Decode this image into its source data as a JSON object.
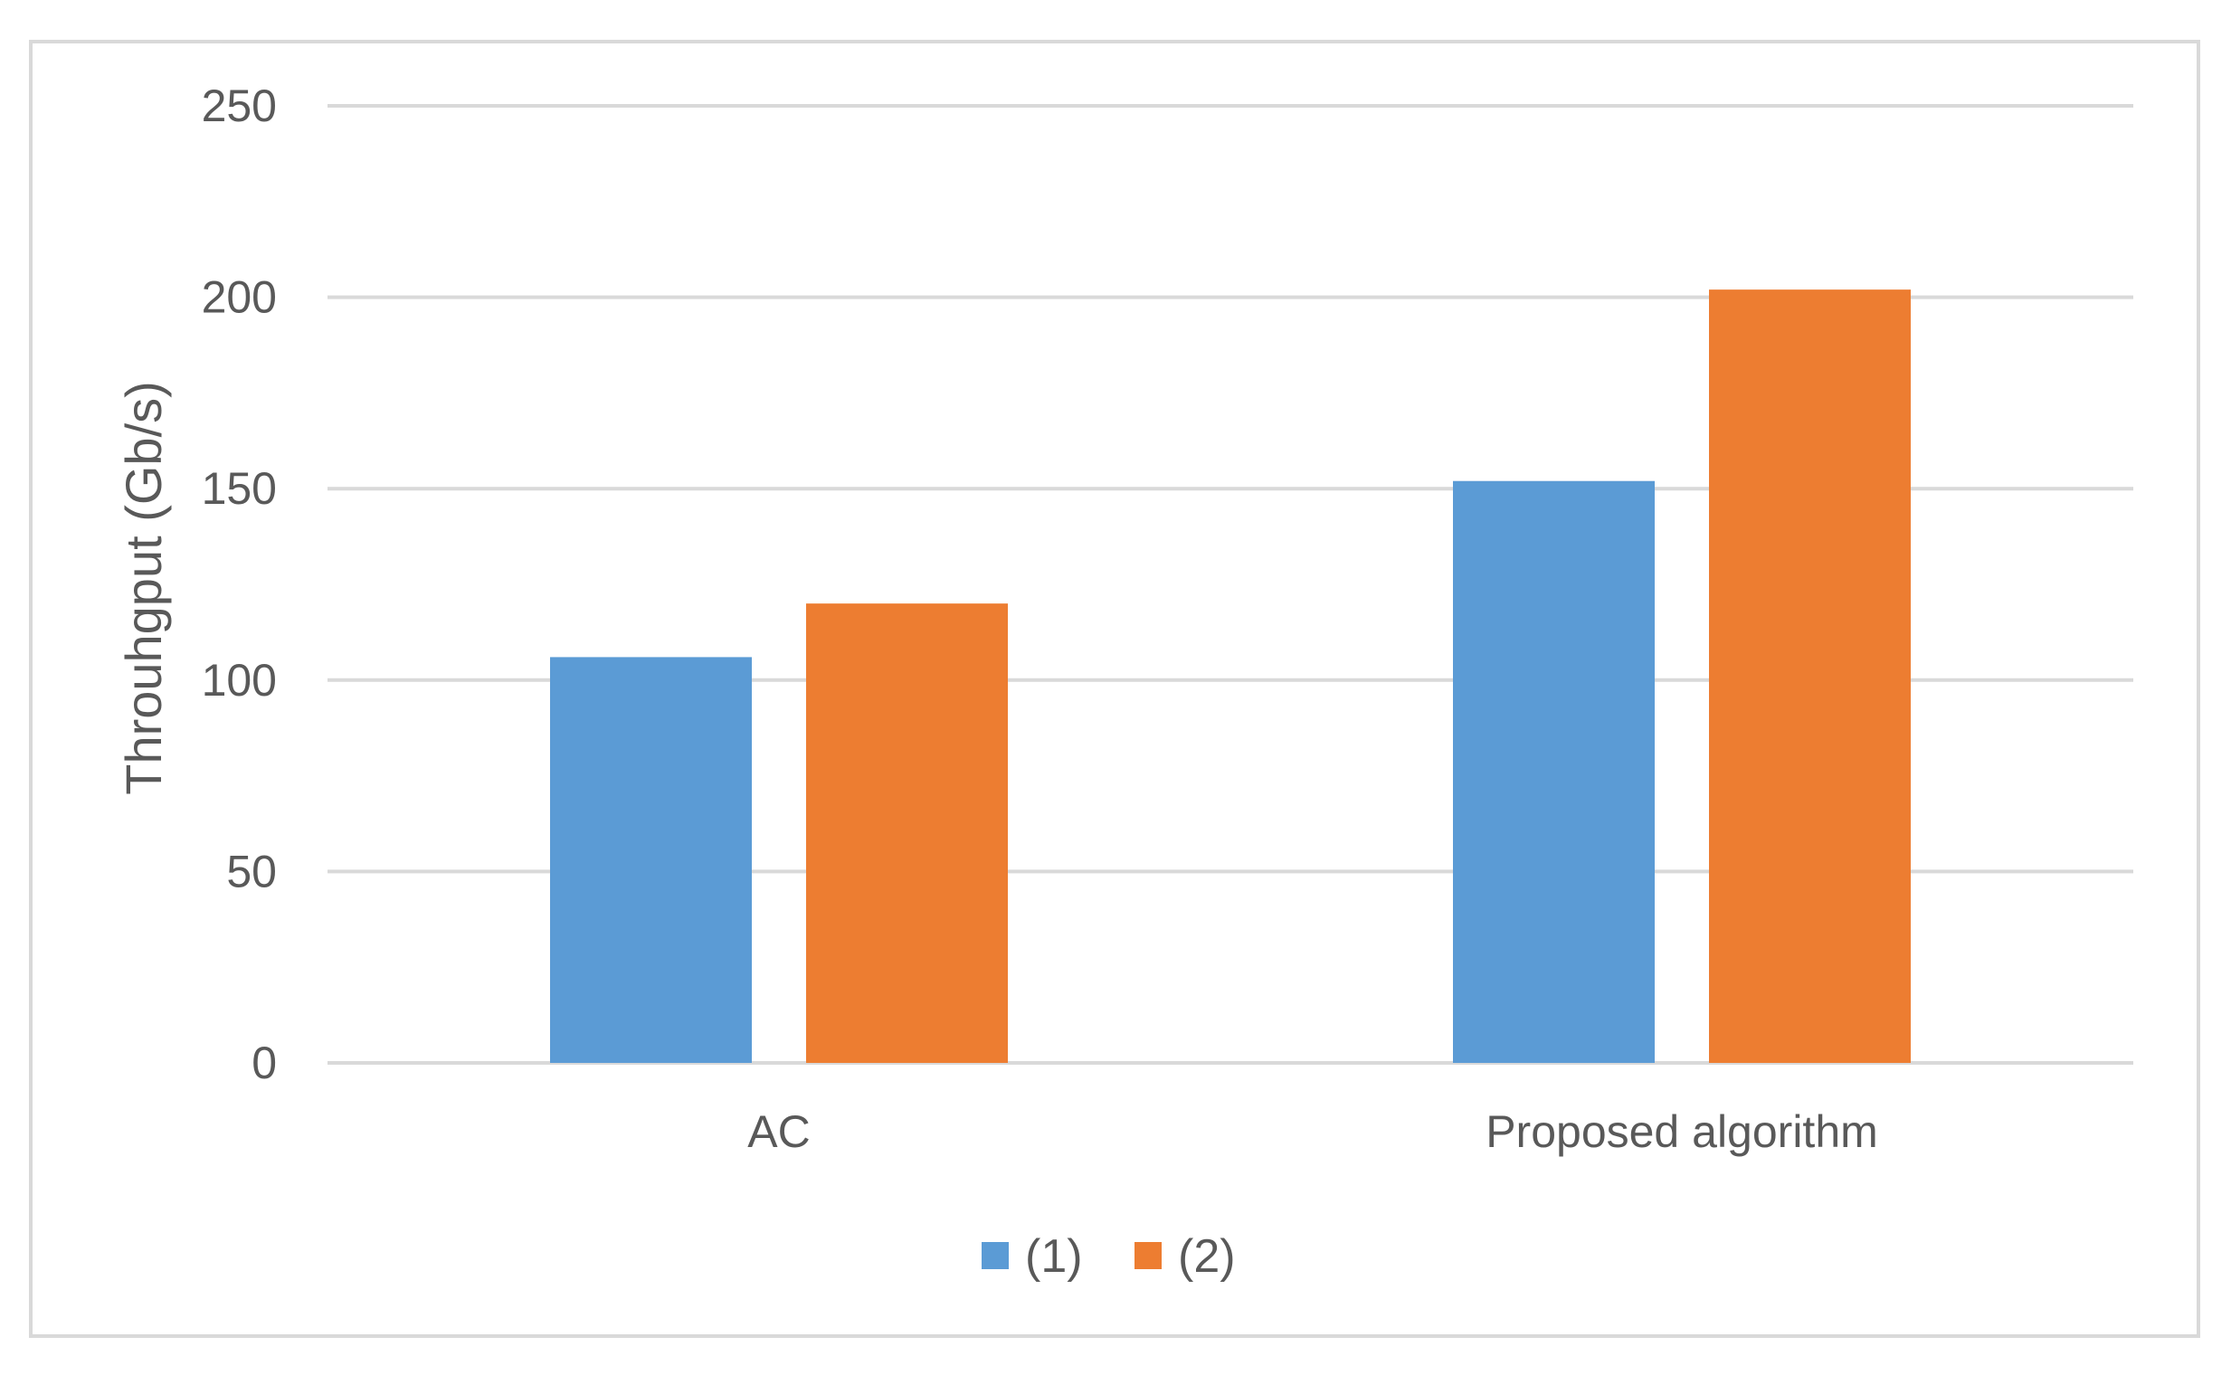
{
  "chart_data": {
    "type": "bar",
    "title": "",
    "xlabel": "",
    "ylabel": "Throuhgput (Gb/s)",
    "categories": [
      "AC",
      "Proposed algorithm"
    ],
    "series": [
      {
        "name": "(1)",
        "values": [
          106,
          152
        ],
        "color": "#5b9bd5"
      },
      {
        "name": "(2)",
        "values": [
          120,
          202
        ],
        "color": "#ed7d31"
      }
    ],
    "ylim": [
      0,
      250
    ],
    "yticks": [
      0,
      50,
      100,
      150,
      200,
      250
    ],
    "grid": true,
    "legend_position": "bottom-center"
  }
}
